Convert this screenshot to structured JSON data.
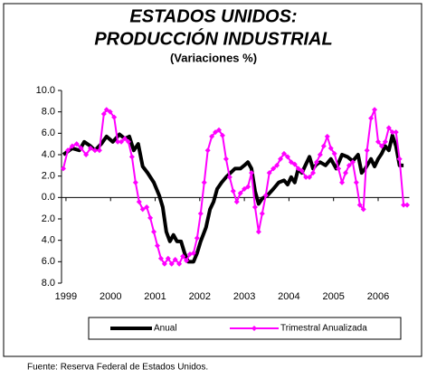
{
  "chart_data": {
    "type": "line",
    "title": [
      "ESTADOS UNIDOS:",
      "PRODUCCIÓN INDUSTRIAL"
    ],
    "subtitle": "(Variaciones %)",
    "source": "Fuente: Reserva Federal de Estados Unidos.",
    "xlim": [
      1998.9,
      2006.7
    ],
    "xticks": [
      1999,
      2000,
      2001,
      2002,
      2003,
      2004,
      2005,
      2006
    ],
    "ylim": [
      -8,
      10
    ],
    "yticks": [
      {
        "value": 10,
        "label": "10.0"
      },
      {
        "value": 8,
        "label": "8.0"
      },
      {
        "value": 6,
        "label": "6.0"
      },
      {
        "value": 4,
        "label": "4.0"
      },
      {
        "value": 2,
        "label": "2.0"
      },
      {
        "value": 0,
        "label": "0.0"
      },
      {
        "value": -2,
        "label": "2.0"
      },
      {
        "value": -4,
        "label": "4.0"
      },
      {
        "value": -6,
        "label": "6.0"
      },
      {
        "value": -8,
        "label": "8.0"
      }
    ],
    "legend": "bottom",
    "series": [
      {
        "name": "Anual",
        "color": "#000000",
        "marker": "none",
        "x": [
          1998.94,
          1999.14,
          1999.3,
          1999.41,
          1999.55,
          1999.65,
          1999.79,
          1999.91,
          2000.05,
          2000.2,
          2000.32,
          2000.42,
          2000.52,
          2000.62,
          2000.72,
          2000.83,
          2000.97,
          2001.09,
          2001.17,
          2001.25,
          2001.33,
          2001.41,
          2001.49,
          2001.58,
          2001.66,
          2001.74,
          2001.86,
          2001.94,
          2002.02,
          2002.14,
          2002.23,
          2002.31,
          2002.39,
          2002.49,
          2002.59,
          2002.69,
          2002.79,
          2002.91,
          2003.0,
          2003.08,
          2003.16,
          2003.24,
          2003.32,
          2003.4,
          2003.52,
          2003.65,
          2003.77,
          2003.89,
          2003.97,
          2004.05,
          2004.13,
          2004.21,
          2004.29,
          2004.38,
          2004.46,
          2004.54,
          2004.62,
          2004.7,
          2004.82,
          2004.94,
          2005.06,
          2005.19,
          2005.31,
          2005.43,
          2005.55,
          2005.63,
          2005.71,
          2005.84,
          2005.92,
          2006.0,
          2006.08,
          2006.16,
          2006.24,
          2006.32,
          2006.4,
          2006.48,
          2006.57
        ],
        "values": [
          4.0,
          4.6,
          4.4,
          5.2,
          4.8,
          4.4,
          5.0,
          5.7,
          5.2,
          5.9,
          5.5,
          5.7,
          4.4,
          5.0,
          2.9,
          2.3,
          1.4,
          0.2,
          -0.9,
          -3.2,
          -4.1,
          -3.5,
          -4.1,
          -4.1,
          -5.2,
          -6.0,
          -6.0,
          -5.2,
          -4.1,
          -2.8,
          -1.1,
          -0.4,
          0.8,
          1.4,
          1.9,
          2.3,
          2.7,
          2.7,
          3.0,
          3.3,
          2.7,
          0.6,
          -0.6,
          -0.1,
          0.2,
          0.8,
          1.4,
          1.6,
          1.2,
          1.9,
          1.4,
          2.7,
          2.3,
          3.1,
          3.8,
          2.7,
          3.1,
          3.3,
          3.0,
          3.6,
          2.7,
          4.0,
          3.8,
          3.4,
          4.0,
          2.3,
          2.7,
          3.6,
          2.9,
          3.6,
          4.1,
          4.8,
          4.4,
          5.8,
          4.8,
          3.0,
          3.0
        ]
      },
      {
        "name": "Trimestral Anualizada",
        "color": "#ff00ff",
        "marker": "diamond",
        "x": [
          1998.94,
          1999.04,
          1999.14,
          1999.24,
          1999.34,
          1999.45,
          1999.55,
          1999.65,
          1999.75,
          1999.85,
          1999.91,
          1999.99,
          2000.08,
          2000.16,
          2000.24,
          2000.32,
          2000.4,
          2000.48,
          2000.56,
          2000.64,
          2000.72,
          2000.81,
          2000.89,
          2000.97,
          2001.05,
          2001.13,
          2001.21,
          2001.29,
          2001.37,
          2001.45,
          2001.54,
          2001.62,
          2001.7,
          2001.78,
          2001.86,
          2001.94,
          2002.02,
          2002.1,
          2002.18,
          2002.27,
          2002.35,
          2002.43,
          2002.51,
          2002.59,
          2002.67,
          2002.75,
          2002.83,
          2002.91,
          2003.0,
          2003.08,
          2003.16,
          2003.24,
          2003.32,
          2003.4,
          2003.48,
          2003.56,
          2003.65,
          2003.73,
          2003.81,
          2003.89,
          2003.97,
          2004.05,
          2004.13,
          2004.21,
          2004.29,
          2004.38,
          2004.46,
          2004.54,
          2004.62,
          2004.7,
          2004.78,
          2004.86,
          2004.94,
          2005.02,
          2005.11,
          2005.19,
          2005.27,
          2005.35,
          2005.43,
          2005.51,
          2005.59,
          2005.67,
          2005.75,
          2005.84,
          2005.92,
          2006.0,
          2006.08,
          2006.16,
          2006.24,
          2006.32,
          2006.4,
          2006.48,
          2006.57,
          2006.65
        ],
        "values": [
          2.7,
          4.4,
          4.8,
          5.0,
          4.6,
          4.0,
          4.6,
          4.4,
          4.4,
          7.8,
          8.2,
          8.0,
          7.5,
          5.2,
          5.2,
          5.5,
          5.2,
          3.8,
          1.4,
          -0.4,
          -1.1,
          -0.9,
          -1.9,
          -3.2,
          -4.5,
          -5.7,
          -6.2,
          -5.7,
          -6.2,
          -5.8,
          -6.2,
          -5.5,
          -5.9,
          -5.3,
          -5.2,
          -3.8,
          -1.5,
          1.4,
          4.4,
          5.7,
          6.1,
          6.3,
          5.8,
          3.6,
          1.9,
          0.6,
          -0.4,
          0.4,
          0.8,
          1.0,
          2.3,
          -0.9,
          -3.2,
          -1.5,
          0.2,
          2.3,
          2.7,
          3.0,
          3.6,
          4.1,
          3.8,
          3.3,
          3.1,
          2.7,
          2.5,
          1.9,
          1.9,
          2.3,
          3.3,
          4.0,
          4.8,
          5.7,
          4.6,
          4.1,
          2.7,
          1.4,
          2.3,
          3.0,
          3.3,
          1.4,
          -0.7,
          -1.1,
          4.4,
          7.4,
          8.2,
          5.2,
          4.8,
          5.2,
          6.5,
          6.1,
          6.1,
          3.6,
          -0.7,
          -0.7
        ]
      }
    ]
  }
}
